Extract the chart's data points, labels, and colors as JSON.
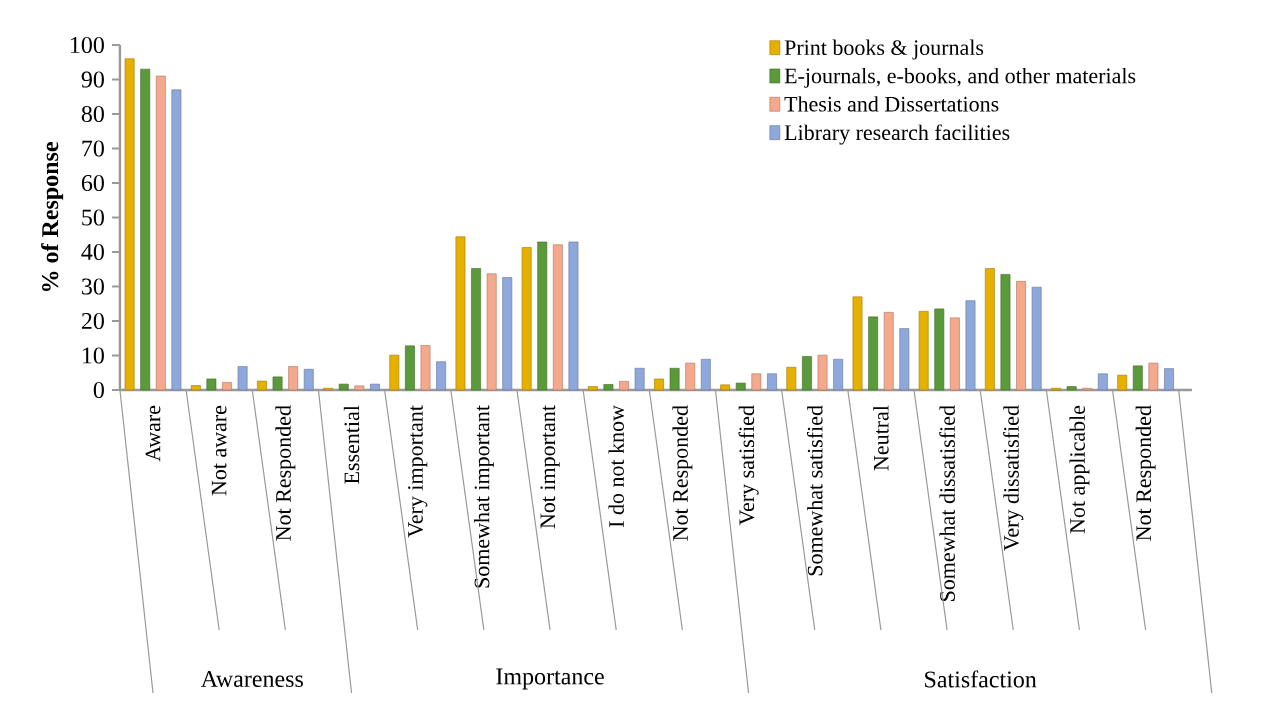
{
  "chart_data": {
    "type": "bar",
    "ylabel": "% of Response",
    "categories": [
      "Aware",
      "Not aware",
      "Not Responded",
      "Essential",
      "Very important",
      "Somewhat important",
      "Not important",
      "I do not know",
      "Not Responded",
      "Very satisfied",
      "Somewhat satisfied",
      "Neutral",
      "Somewhat dissatisfied",
      "Very dissatisfied",
      "Not applicable",
      "Not Responded"
    ],
    "series": [
      {
        "name": "Print books & journals",
        "color": "#e6b000",
        "values": [
          96,
          1.3,
          2.6,
          0.5,
          10.1,
          44.4,
          41.3,
          1,
          3.2,
          1.5,
          6.6,
          27,
          22.8,
          35.2,
          0.5,
          4.3
        ]
      },
      {
        "name": "E-journals, e-books, and other materials",
        "color": "#5b9a3a",
        "values": [
          93,
          3.2,
          3.8,
          1.7,
          12.8,
          35.2,
          42.9,
          1.6,
          6.3,
          2,
          9.7,
          21.2,
          23.5,
          33.5,
          1,
          7
        ]
      },
      {
        "name": "Thesis and Dissertations",
        "color": "#f4a98c",
        "values": [
          91,
          2.2,
          6.8,
          1.2,
          12.9,
          33.7,
          42.1,
          2.5,
          7.8,
          4.7,
          10.1,
          22.5,
          20.9,
          31.5,
          0.5,
          7.8
        ]
      },
      {
        "name": "Library research facilities",
        "color": "#8fa8dc",
        "values": [
          87,
          6.8,
          6,
          1.7,
          8.2,
          32.6,
          42.9,
          6.3,
          8.9,
          4.7,
          8.9,
          17.8,
          25.9,
          29.8,
          4.7,
          6.2
        ]
      }
    ],
    "ylim": [
      0,
      100
    ],
    "yticks": [
      0,
      10,
      20,
      30,
      40,
      50,
      60,
      70,
      80,
      90,
      100
    ],
    "legend": "top right",
    "annotations": [
      "Awareness",
      "Importance",
      "Satisfaction"
    ]
  }
}
